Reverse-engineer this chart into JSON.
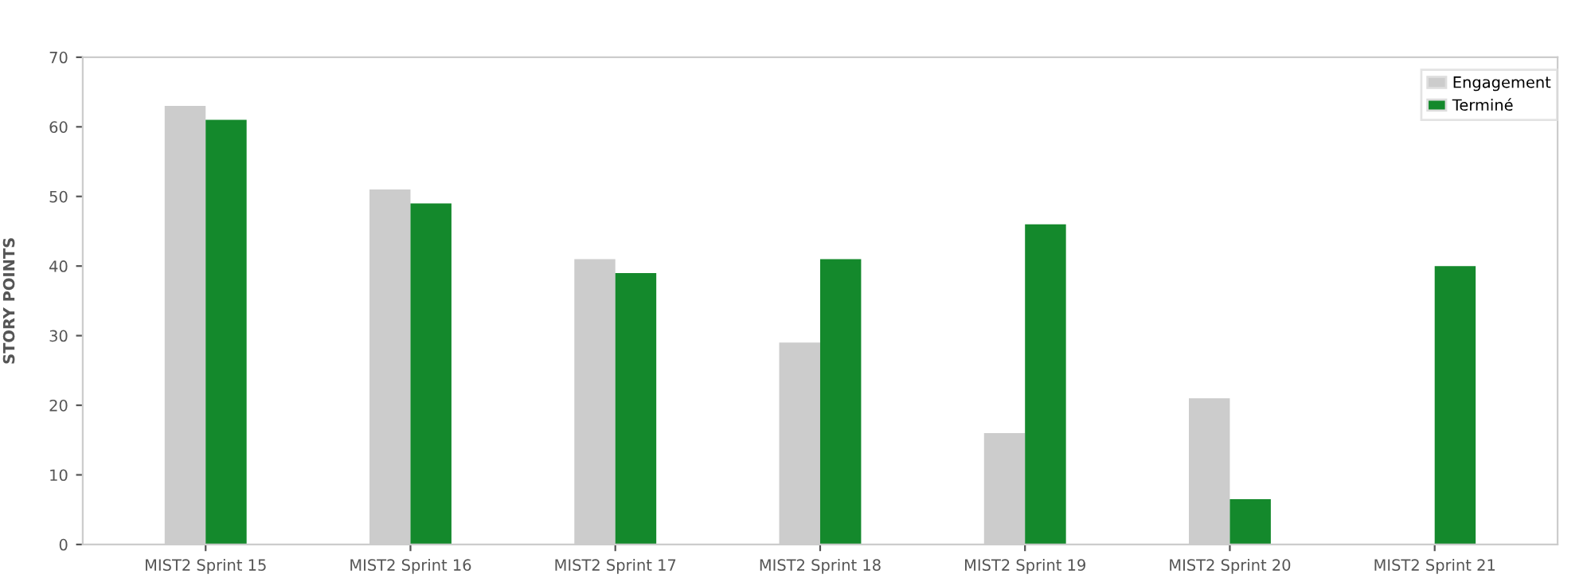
{
  "chart_data": {
    "type": "bar",
    "ylabel": "STORY POINTS",
    "categories": [
      "MIST2 Sprint 15",
      "MIST2 Sprint 16",
      "MIST2 Sprint 17",
      "MIST2 Sprint 18",
      "MIST2 Sprint 19",
      "MIST2 Sprint 20",
      "MIST2 Sprint 21"
    ],
    "series": [
      {
        "name": "Engagement",
        "color": "#cccccc",
        "values": [
          63,
          51,
          41,
          29,
          16,
          21,
          null
        ]
      },
      {
        "name": "Terminé",
        "color": "#14892c",
        "values": [
          61,
          49,
          39,
          41,
          46,
          6.5,
          40
        ]
      }
    ],
    "ylim": [
      0,
      70
    ],
    "yticks": [
      0,
      10,
      20,
      30,
      40,
      50,
      60,
      70
    ],
    "grid": false,
    "legend": "top right"
  }
}
